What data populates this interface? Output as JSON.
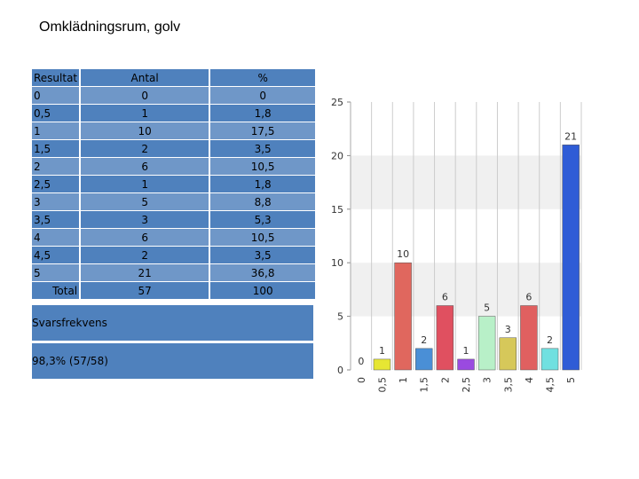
{
  "title": "Omklädningsrum, golv",
  "table": {
    "headers": [
      "Resultat",
      "Antal",
      "%"
    ],
    "rows": [
      [
        "0",
        "0",
        "0"
      ],
      [
        "0,5",
        "1",
        "1,8"
      ],
      [
        "1",
        "10",
        "17,5"
      ],
      [
        "1,5",
        "2",
        "3,5"
      ],
      [
        "2",
        "6",
        "10,5"
      ],
      [
        "2,5",
        "1",
        "1,8"
      ],
      [
        "3",
        "5",
        "8,8"
      ],
      [
        "3,5",
        "3",
        "5,3"
      ],
      [
        "4",
        "6",
        "10,5"
      ],
      [
        "4,5",
        "2",
        "3,5"
      ],
      [
        "5",
        "21",
        "36,8"
      ]
    ],
    "total": [
      "Total",
      "57",
      "100"
    ]
  },
  "response_rate": {
    "label": "Svarsfrekvens",
    "value": "98,3% (57/58)"
  },
  "chart_data": {
    "type": "bar",
    "categories": [
      "0",
      "0,5",
      "1",
      "1,5",
      "2",
      "2,5",
      "3",
      "3,5",
      "4",
      "4,5",
      "5"
    ],
    "values": [
      0,
      1,
      10,
      2,
      6,
      1,
      5,
      3,
      6,
      2,
      21
    ],
    "data_labels": [
      "0",
      "1",
      "10",
      "2",
      "6",
      "1",
      "5",
      "3",
      "6",
      "2",
      "21"
    ],
    "colors": [
      "#d4d4d4",
      "#e6e633",
      "#e0675e",
      "#4a8fd6",
      "#e05060",
      "#9a4ae0",
      "#b8f0c8",
      "#d6c85a",
      "#e06060",
      "#70e0e0",
      "#2f5cd6"
    ],
    "yticks": [
      "0",
      "5",
      "10",
      "15",
      "20",
      "25"
    ],
    "ylim": [
      0,
      25
    ],
    "grid": true,
    "xlabel": "",
    "ylabel": ""
  }
}
